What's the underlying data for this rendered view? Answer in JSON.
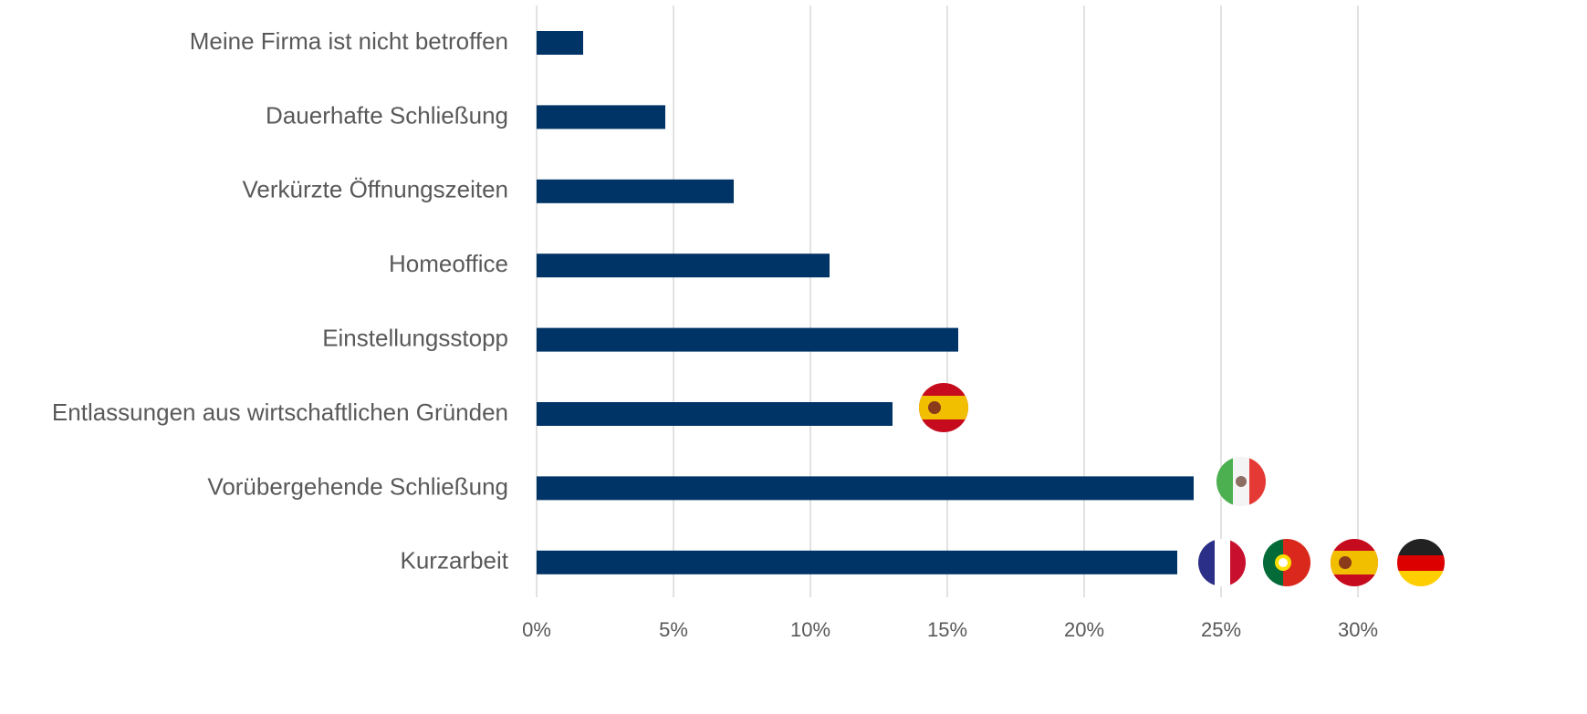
{
  "chart_data": {
    "type": "bar",
    "orientation": "horizontal",
    "categories": [
      "Meine Firma ist nicht betroffen",
      "Dauerhafte Schließung",
      "Verkürzte Öffnungszeiten",
      "Homeoffice",
      "Einstellungsstopp",
      "Entlassungen aus wirtschaftlichen Gründen",
      "Vorübergehende Schließung",
      "Kurzarbeit"
    ],
    "values": [
      1.7,
      4.7,
      7.2,
      10.7,
      15.4,
      13.0,
      24.0,
      23.4
    ],
    "color": "#003366",
    "xlim": [
      0,
      30
    ],
    "xticks": [
      {
        "value": 0,
        "label": "0%"
      },
      {
        "value": 5,
        "label": "5%"
      },
      {
        "value": 10,
        "label": "10%"
      },
      {
        "value": 15,
        "label": "15%"
      },
      {
        "value": 20,
        "label": "20%"
      },
      {
        "value": 25,
        "label": "25%"
      },
      {
        "value": 30,
        "label": "30%"
      }
    ],
    "grid": true
  }
}
